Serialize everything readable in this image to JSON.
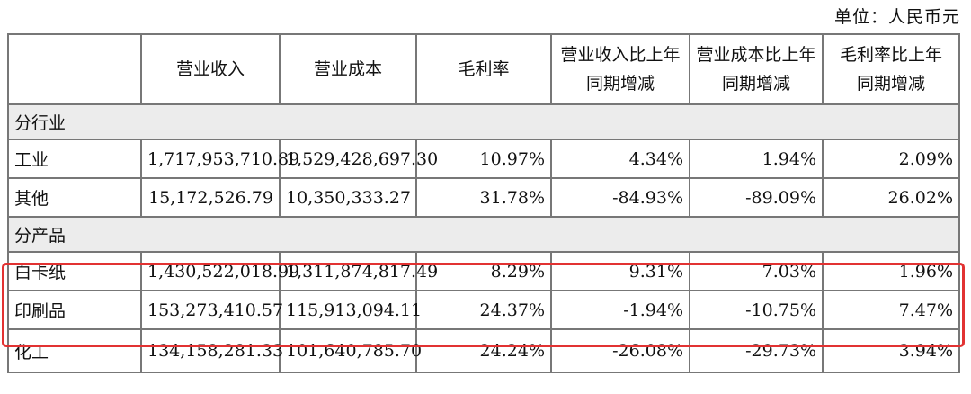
{
  "unit_label": "单位：人民币元",
  "headers": [
    "",
    "营业收入",
    "营业成本",
    "毛利率",
    "营业收入比上年同期增减",
    "营业成本比上年同期增减",
    "毛利率比上年同期增减"
  ],
  "sections": {
    "by_industry": "分行业",
    "by_product": "分产品"
  },
  "rows": {
    "industrial": [
      "工业",
      "1,717,953,710.89",
      "1,529,428,697.30",
      "10.97%",
      "4.34%",
      "1.94%",
      "2.09%"
    ],
    "other": [
      "其他",
      "15,172,526.79",
      "10,350,333.27",
      "31.78%",
      "-84.93%",
      "-89.09%",
      "26.02%"
    ],
    "white_card": [
      "白卡纸",
      "1,430,522,018.99",
      "1,311,874,817.49",
      "8.29%",
      "9.31%",
      "7.03%",
      "1.96%"
    ],
    "printed": [
      "印刷品",
      "153,273,410.57",
      "115,913,094.11",
      "24.37%",
      "-1.94%",
      "-10.75%",
      "7.47%"
    ],
    "chemical": [
      "化工",
      "134,158,281.33",
      "101,640,785.70",
      "24.24%",
      "-26.08%",
      "-29.73%",
      "3.94%"
    ]
  },
  "highlight_color": "#e23232"
}
